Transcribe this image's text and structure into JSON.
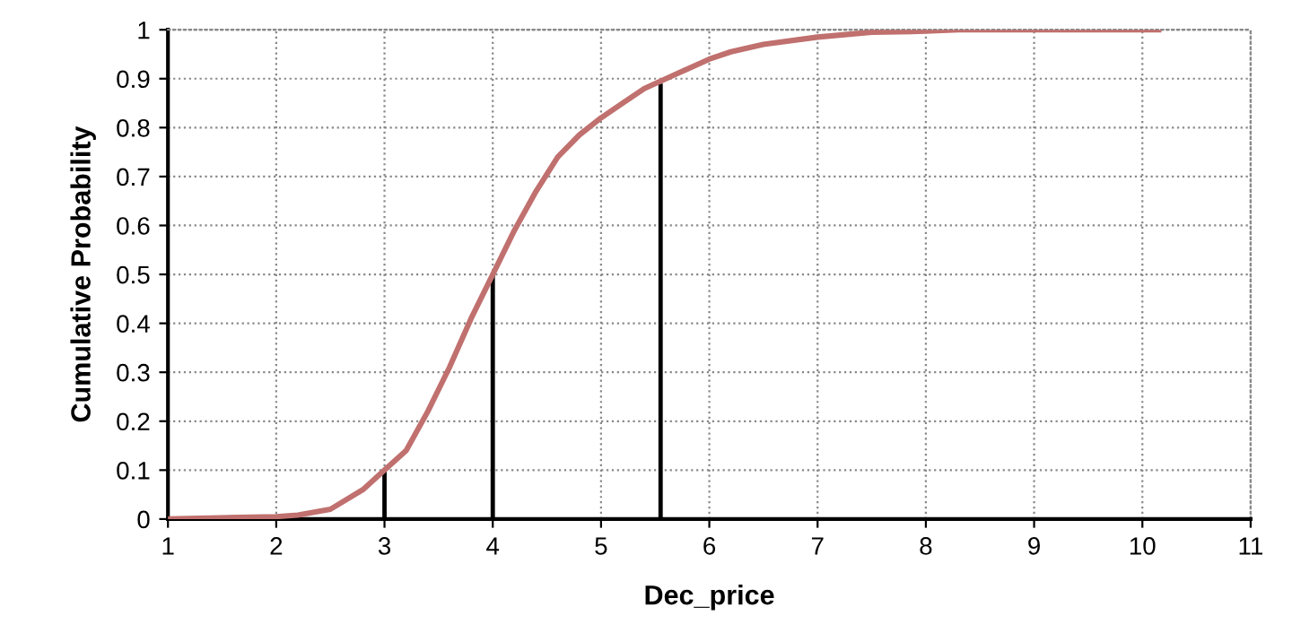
{
  "chart_data": {
    "type": "line",
    "xlabel": "Dec_price",
    "ylabel": "Cumulative Probability",
    "xlim": [
      1,
      11
    ],
    "xticks": [
      1,
      2,
      3,
      4,
      5,
      6,
      7,
      8,
      9,
      10,
      11
    ],
    "ylim": [
      0,
      1
    ],
    "yticks": [
      0,
      0.1,
      0.2,
      0.3,
      0.4,
      0.5,
      0.6,
      0.7,
      0.8,
      0.9,
      1
    ],
    "grid": true,
    "legend": false,
    "marker": "none",
    "line_style": "solid",
    "series": [
      {
        "color": "#c0706e",
        "x": [
          1,
          2,
          2.2,
          2.5,
          2.8,
          3,
          3.2,
          3.4,
          3.6,
          3.8,
          4,
          4.2,
          4.4,
          4.6,
          4.8,
          5,
          5.2,
          5.4,
          5.7,
          6,
          6.2,
          6.5,
          7,
          7.5,
          8,
          8.3,
          10.15
        ],
        "values": [
          0,
          0.005,
          0.008,
          0.02,
          0.06,
          0.1,
          0.14,
          0.22,
          0.31,
          0.41,
          0.5,
          0.59,
          0.67,
          0.74,
          0.785,
          0.82,
          0.85,
          0.88,
          0.91,
          0.94,
          0.955,
          0.97,
          0.985,
          0.995,
          0.997,
          1,
          1
        ]
      },
      {
        "type": "bar",
        "color": "#000000",
        "x": [
          3,
          4,
          5.55
        ],
        "values": [
          0.1,
          0.5,
          0.89
        ]
      }
    ]
  }
}
